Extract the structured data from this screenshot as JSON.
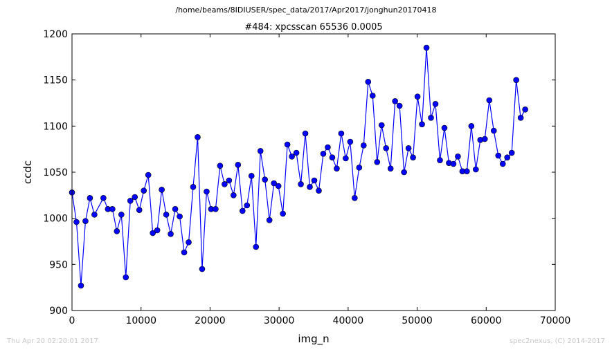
{
  "chart_data": {
    "type": "line",
    "suptitle": "/home/beams/8IDIUSER/spec_data/2017/Apr2017/jonghun20170418",
    "title": "#484: xpcsscan 65536 0.0005",
    "xlabel": "img_n",
    "ylabel": "ccdc",
    "xlim": [
      0,
      70000
    ],
    "ylim": [
      900,
      1200
    ],
    "xticks": [
      "0",
      "10000",
      "20000",
      "30000",
      "40000",
      "50000",
      "60000",
      "70000"
    ],
    "yticks": [
      "900",
      "950",
      "1000",
      "1050",
      "1100",
      "1150",
      "1200"
    ],
    "grid": false,
    "legend": "none",
    "series_color": "#0000ff",
    "x": [
      0,
      650,
      1300,
      1950,
      2600,
      3250,
      4550,
      5200,
      5850,
      6500,
      7150,
      7800,
      8450,
      9100,
      9750,
      10400,
      11050,
      11700,
      12350,
      13000,
      13650,
      14300,
      14950,
      15600,
      16250,
      16900,
      17550,
      18200,
      18850,
      19500,
      20150,
      20800,
      21450,
      22100,
      22750,
      23400,
      24050,
      24700,
      25350,
      26000,
      26650,
      27300,
      27950,
      28600,
      29250,
      29900,
      30550,
      31200,
      31850,
      32500,
      33150,
      33800,
      34450,
      35100,
      35750,
      36400,
      37050,
      37700,
      38350,
      39000,
      39650,
      40300,
      40950,
      41600,
      42250,
      42900,
      43550,
      44200,
      44850,
      45500,
      46150,
      46800,
      47450,
      48100,
      48750,
      49400,
      50050,
      50700,
      51350,
      52000,
      52650,
      53300,
      53950,
      54600,
      55250,
      55900,
      56550,
      57200,
      57850,
      58500,
      59150,
      59800,
      60450,
      61100,
      61750,
      62400,
      63050,
      63700,
      64350,
      65000,
      65650
    ],
    "y": [
      1028,
      996,
      927,
      997,
      1022,
      1004,
      1022,
      1010,
      1010,
      986,
      1004,
      936,
      1019,
      1023,
      1009,
      1030,
      1047,
      984,
      987,
      1031,
      1004,
      983,
      1010,
      1002,
      963,
      974,
      1034,
      1088,
      945,
      1029,
      1010,
      1010,
      1057,
      1037,
      1041,
      1025,
      1058,
      1008,
      1014,
      1046,
      969,
      1073,
      1042,
      998,
      1038,
      1035,
      1005,
      1080,
      1067,
      1071,
      1037,
      1092,
      1034,
      1041,
      1030,
      1070,
      1077,
      1066,
      1054,
      1092,
      1065,
      1083,
      1022,
      1055,
      1079,
      1148,
      1133,
      1061,
      1101,
      1076,
      1054,
      1127,
      1122,
      1050,
      1076,
      1066,
      1132,
      1102,
      1185,
      1109,
      1124,
      1063,
      1098,
      1060,
      1059,
      1067,
      1051,
      1051,
      1100,
      1053,
      1085,
      1086,
      1128,
      1095,
      1068,
      1059,
      1066,
      1071,
      1150,
      1109,
      1118
    ]
  },
  "footer": {
    "left": "Thu Apr 20 02:20:01 2017",
    "right": "spec2nexus, (C) 2014-2017"
  }
}
